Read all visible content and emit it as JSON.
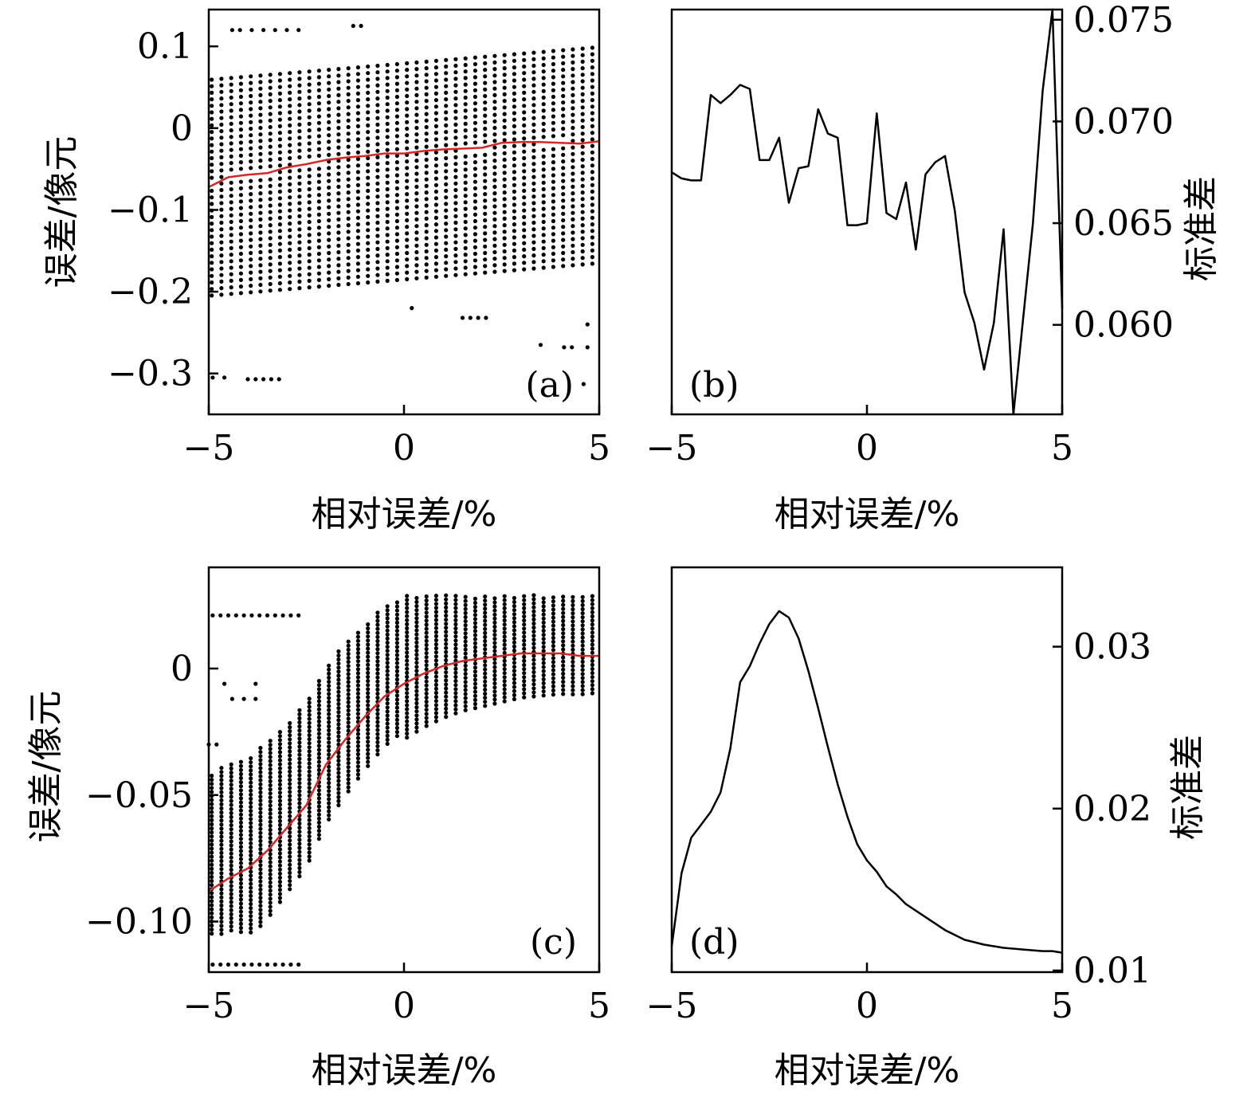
{
  "chart_data": [
    {
      "panel": "a",
      "type": "scatter",
      "tag": "(a)",
      "xlabel": "相对误差/%",
      "ylabel": "误差/像元",
      "xlim": [
        -5,
        5
      ],
      "ylim": [
        -0.35,
        0.145
      ],
      "xticks": [
        -5,
        0,
        5
      ],
      "xtick_labels": [
        "−5",
        "0",
        "5"
      ],
      "yticks": [
        -0.3,
        -0.2,
        -0.1,
        0,
        0.1
      ],
      "ytick_labels": [
        "−0.3",
        "−0.2",
        "−0.1",
        "0",
        "0.1"
      ],
      "mean_line_color": "#d62728",
      "point_color": "#000000",
      "scatter_columns": 40,
      "scatter_band": {
        "lower": -0.205,
        "upper": 0.06,
        "step": 0.008
      },
      "outlier_points": [
        {
          "x": [
            -4.9,
            -4.6
          ],
          "y": -0.305
        },
        {
          "x": [
            -4.0,
            -3.8,
            -3.6,
            -3.4,
            -3.2
          ],
          "y": -0.307
        },
        {
          "x": [
            0.2
          ],
          "y": -0.22
        },
        {
          "x": [
            1.5,
            1.7,
            1.9,
            2.1
          ],
          "y": -0.232
        },
        {
          "x": [
            3.5
          ],
          "y": -0.265
        },
        {
          "x": [
            4.1,
            4.3,
            4.7
          ],
          "y": -0.268
        },
        {
          "x": [
            4.7
          ],
          "y": -0.24
        },
        {
          "x": [
            4.6
          ],
          "y": -0.313
        },
        {
          "x": [
            -4.4,
            -4.2,
            -3.9,
            -3.6,
            -3.3,
            -3.0,
            -2.7
          ],
          "y": 0.12
        },
        {
          "x": [
            -1.3,
            -1.1
          ],
          "y": 0.125
        }
      ],
      "series": [
        {
          "name": "mean",
          "x": [
            -5.0,
            -4.5,
            -4.0,
            -3.5,
            -3.0,
            -2.5,
            -2.0,
            -1.5,
            -1.0,
            -0.5,
            0.0,
            0.5,
            1.0,
            1.5,
            2.0,
            2.5,
            3.0,
            3.5,
            4.0,
            4.5,
            5.0
          ],
          "y": [
            -0.072,
            -0.06,
            -0.057,
            -0.055,
            -0.048,
            -0.044,
            -0.039,
            -0.036,
            -0.034,
            -0.031,
            -0.031,
            -0.028,
            -0.026,
            -0.025,
            -0.024,
            -0.018,
            -0.017,
            -0.017,
            -0.018,
            -0.019,
            -0.016
          ]
        }
      ]
    },
    {
      "panel": "b",
      "type": "line",
      "tag": "(b)",
      "xlabel": "相对误差/%",
      "ylabel": "标准差",
      "yaxis_side": "right",
      "xlim": [
        -5,
        5
      ],
      "ylim": [
        0.0556,
        0.0755
      ],
      "xticks": [
        -5,
        0,
        5
      ],
      "xtick_labels": [
        "−5",
        "0",
        "5"
      ],
      "yticks": [
        0.06,
        0.065,
        0.07,
        0.075
      ],
      "ytick_labels": [
        "0.060",
        "0.065",
        "0.070",
        "0.075"
      ],
      "series": [
        {
          "name": "std",
          "x": [
            -5.0,
            -4.75,
            -4.5,
            -4.25,
            -4.0,
            -3.75,
            -3.5,
            -3.25,
            -3.0,
            -2.75,
            -2.5,
            -2.25,
            -2.0,
            -1.75,
            -1.5,
            -1.25,
            -1.0,
            -0.75,
            -0.5,
            -0.25,
            0.0,
            0.25,
            0.5,
            0.75,
            1.0,
            1.25,
            1.5,
            1.75,
            2.0,
            2.25,
            2.5,
            2.75,
            3.0,
            3.25,
            3.5,
            3.75,
            4.0,
            4.25,
            4.5,
            4.75,
            5.0
          ],
          "y": [
            0.0675,
            0.0672,
            0.0671,
            0.0671,
            0.0713,
            0.0709,
            0.0713,
            0.0718,
            0.0716,
            0.0681,
            0.0681,
            0.0692,
            0.066,
            0.0677,
            0.0678,
            0.0706,
            0.0694,
            0.0692,
            0.0649,
            0.0649,
            0.065,
            0.0704,
            0.0655,
            0.0652,
            0.067,
            0.0637,
            0.0674,
            0.068,
            0.0683,
            0.0656,
            0.0616,
            0.0601,
            0.0578,
            0.0601,
            0.0647,
            0.0556,
            0.0603,
            0.065,
            0.0715,
            0.0755,
            0.0608
          ]
        }
      ]
    },
    {
      "panel": "c",
      "type": "scatter",
      "tag": "(c)",
      "xlabel": "相对误差/%",
      "ylabel": "误差/像元",
      "xlim": [
        -5,
        5
      ],
      "ylim": [
        -0.12,
        0.04
      ],
      "xticks": [
        -5,
        0,
        5
      ],
      "xtick_labels": [
        "−5",
        "0",
        "5"
      ],
      "yticks": [
        -0.1,
        -0.05,
        0
      ],
      "ytick_labels": [
        "−0.10",
        "−0.05",
        "0"
      ],
      "mean_line_color": "#d62728",
      "point_color": "#000000",
      "scatter_columns": 40,
      "scatter_spread": 0.0085,
      "scatter_step": 0.0016,
      "outlier_points": [
        {
          "x": [
            -4.9,
            -4.7,
            -4.5,
            -4.3,
            -4.1,
            -3.9,
            -3.7,
            -3.5,
            -3.3,
            -3.1,
            -2.9,
            -2.7
          ],
          "y": -0.117
        },
        {
          "x": [
            -4.9,
            -4.7,
            -4.5,
            -4.3,
            -4.1,
            -3.9,
            -3.7,
            -3.5,
            -3.3,
            -3.1,
            -2.9,
            -2.7
          ],
          "y": 0.021
        },
        {
          "x": [
            -4.4,
            -4.1,
            -3.8
          ],
          "y": -0.012
        },
        {
          "x": [
            -5.0,
            -4.8
          ],
          "y": -0.03
        },
        {
          "x": [
            -4.6,
            -3.8
          ],
          "y": -0.006
        }
      ],
      "series": [
        {
          "name": "mean",
          "x": [
            -5.0,
            -4.5,
            -4.0,
            -3.5,
            -3.0,
            -2.5,
            -2.0,
            -1.5,
            -1.0,
            -0.5,
            0.0,
            0.5,
            1.0,
            1.5,
            2.0,
            2.5,
            3.0,
            3.5,
            4.0,
            4.5,
            5.0
          ],
          "y": [
            -0.088,
            -0.083,
            -0.079,
            -0.072,
            -0.063,
            -0.054,
            -0.038,
            -0.028,
            -0.019,
            -0.011,
            -0.006,
            -0.002,
            0.001,
            0.003,
            0.004,
            0.005,
            0.006,
            0.006,
            0.006,
            0.005,
            0.005
          ]
        }
      ]
    },
    {
      "panel": "d",
      "type": "line",
      "tag": "(d)",
      "xlabel": "相对误差/%",
      "ylabel": "标准差",
      "yaxis_side": "right",
      "xlim": [
        -5,
        5
      ],
      "ylim": [
        0.0099,
        0.0349
      ],
      "xticks": [
        -5,
        0,
        5
      ],
      "xtick_labels": [
        "−5",
        "0",
        "5"
      ],
      "yticks": [
        0.01,
        0.02,
        0.03
      ],
      "ytick_labels": [
        "0.01",
        "0.02",
        "0.03"
      ],
      "series": [
        {
          "name": "std",
          "x": [
            -5.0,
            -4.75,
            -4.5,
            -4.25,
            -4.0,
            -3.75,
            -3.5,
            -3.25,
            -3.0,
            -2.75,
            -2.5,
            -2.25,
            -2.0,
            -1.75,
            -1.5,
            -1.25,
            -1.0,
            -0.75,
            -0.5,
            -0.25,
            0.0,
            0.25,
            0.5,
            0.75,
            1.0,
            1.25,
            1.5,
            2.0,
            2.5,
            3.0,
            3.5,
            4.0,
            4.5,
            4.75,
            5.0
          ],
          "y": [
            0.0115,
            0.016,
            0.0182,
            0.019,
            0.0198,
            0.021,
            0.0237,
            0.0278,
            0.0288,
            0.0302,
            0.0314,
            0.0322,
            0.0318,
            0.0305,
            0.0285,
            0.0262,
            0.0238,
            0.0215,
            0.0195,
            0.0178,
            0.0168,
            0.0161,
            0.0152,
            0.0147,
            0.0141,
            0.0137,
            0.0133,
            0.0125,
            0.0119,
            0.0116,
            0.0114,
            0.0113,
            0.0112,
            0.0112,
            0.0111
          ]
        }
      ]
    }
  ]
}
